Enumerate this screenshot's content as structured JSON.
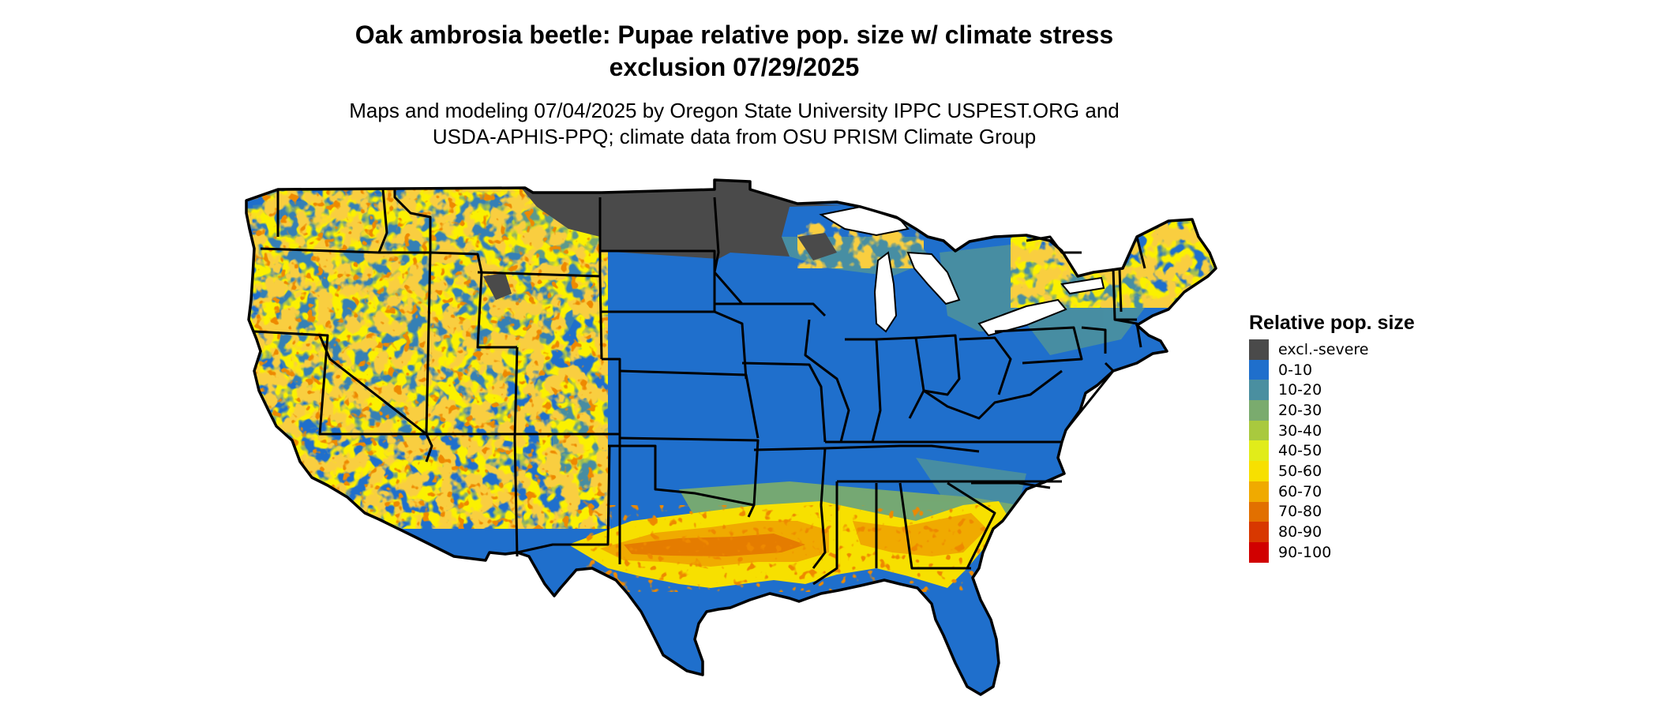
{
  "title_line1": "Oak ambrosia beetle: Pupae relative pop. size w/ climate stress",
  "title_line2": "exclusion 07/29/2025",
  "subtitle_line1": "Maps and modeling 07/04/2025 by Oregon State University IPPC USPEST.ORG and",
  "subtitle_line2": "USDA-APHIS-PPQ; climate data from OSU PRISM Climate Group",
  "legend": {
    "title": "Relative pop. size",
    "items": [
      {
        "label": "excl.-severe",
        "color": "#4a4a4a"
      },
      {
        "label": "0-10",
        "color": "#1f6fcc"
      },
      {
        "label": "10-20",
        "color": "#4a8fa0"
      },
      {
        "label": "20-30",
        "color": "#7aab6e"
      },
      {
        "label": "30-40",
        "color": "#a9c93e"
      },
      {
        "label": "40-50",
        "color": "#e1ec1a"
      },
      {
        "label": "50-60",
        "color": "#f7e000"
      },
      {
        "label": "60-70",
        "color": "#f0aa00"
      },
      {
        "label": "70-80",
        "color": "#e27000"
      },
      {
        "label": "80-90",
        "color": "#d83800"
      },
      {
        "label": "90-100",
        "color": "#d10000"
      }
    ]
  }
}
